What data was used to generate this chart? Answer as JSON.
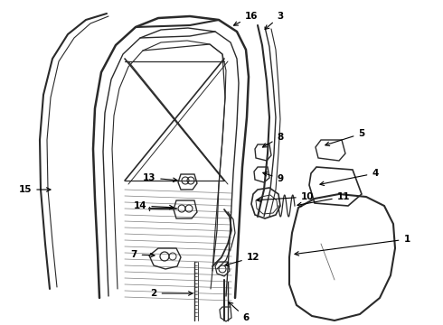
{
  "bg_color": "#ffffff",
  "line_color": "#2a2a2a",
  "text_color": "#000000",
  "figsize": [
    4.9,
    3.6
  ],
  "dpi": 100,
  "xlim": [
    0,
    490
  ],
  "ylim": [
    0,
    360
  ]
}
